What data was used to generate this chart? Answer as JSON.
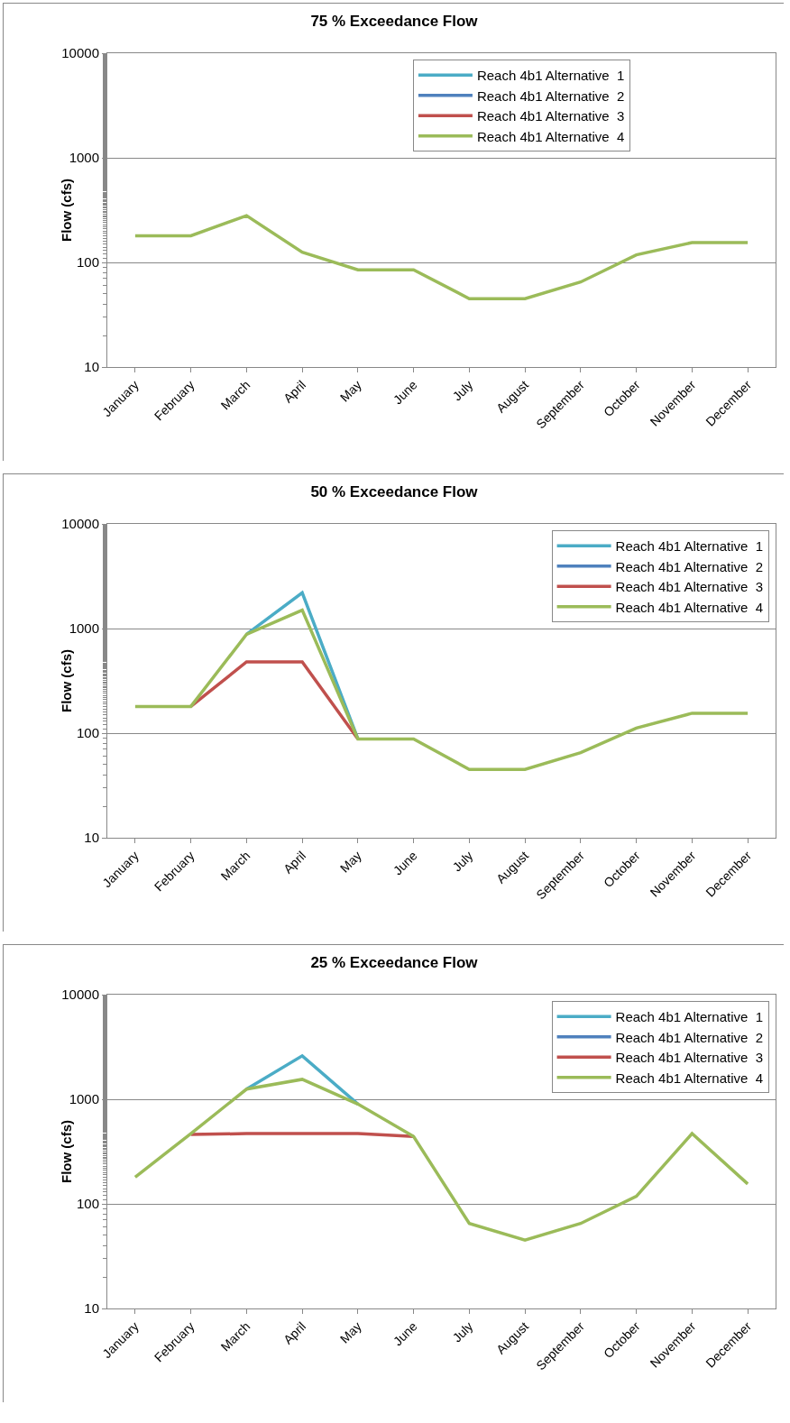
{
  "chart_data": [
    {
      "type": "line",
      "title": "75 % Exceedance Flow",
      "ylabel": "Flow (cfs)",
      "categories": [
        "January",
        "February",
        "March",
        "April",
        "May",
        "June",
        "July",
        "August",
        "September",
        "October",
        "November",
        "December"
      ],
      "log": true,
      "ylim": [
        10,
        10000
      ],
      "yticks": [
        10,
        100,
        1000,
        10000
      ],
      "grid": "y",
      "legend": "top",
      "marker": "none",
      "line_style": "solid",
      "series": [
        {
          "name": "Reach 4b1 Alternative  1",
          "color": "#4bacc6",
          "values": [
            null,
            null,
            null,
            null,
            null,
            null,
            null,
            null,
            null,
            null,
            null,
            null
          ]
        },
        {
          "name": "Reach 4b1 Alternative  2",
          "color": "#4f81bd",
          "values": [
            null,
            null,
            null,
            null,
            null,
            null,
            null,
            null,
            null,
            null,
            null,
            null
          ]
        },
        {
          "name": "Reach 4b1 Alternative  3",
          "color": "#c0504d",
          "values": [
            null,
            null,
            null,
            null,
            null,
            null,
            null,
            null,
            null,
            null,
            null,
            null
          ]
        },
        {
          "name": "Reach 4b1 Alternative  4",
          "color": "#9bbb59",
          "values": [
            180,
            180,
            280,
            125,
            85,
            85,
            45,
            45,
            65,
            118,
            155,
            155
          ]
        }
      ]
    },
    {
      "type": "line",
      "title": "50 % Exceedance Flow",
      "ylabel": "Flow (cfs)",
      "categories": [
        "January",
        "February",
        "March",
        "April",
        "May",
        "June",
        "July",
        "August",
        "September",
        "October",
        "November",
        "December"
      ],
      "log": true,
      "ylim": [
        10,
        10000
      ],
      "yticks": [
        10,
        100,
        1000,
        10000
      ],
      "grid": "y",
      "legend": "top right",
      "marker": "none",
      "line_style": "solid",
      "series": [
        {
          "name": "Reach 4b1 Alternative  1",
          "color": "#4bacc6",
          "values": [
            null,
            null,
            880,
            2200,
            88,
            null,
            null,
            null,
            null,
            null,
            null,
            null
          ]
        },
        {
          "name": "Reach 4b1 Alternative  2",
          "color": "#4f81bd",
          "values": [
            null,
            null,
            null,
            null,
            null,
            null,
            null,
            null,
            null,
            null,
            null,
            null
          ]
        },
        {
          "name": "Reach 4b1 Alternative  3",
          "color": "#c0504d",
          "values": [
            null,
            180,
            480,
            480,
            88,
            null,
            null,
            null,
            null,
            null,
            null,
            null
          ]
        },
        {
          "name": "Reach 4b1 Alternative  4",
          "color": "#9bbb59",
          "values": [
            180,
            180,
            880,
            1500,
            88,
            88,
            45,
            45,
            65,
            112,
            155,
            155
          ]
        }
      ]
    },
    {
      "type": "line",
      "title": "25 % Exceedance Flow",
      "ylabel": "Flow (cfs)",
      "categories": [
        "January",
        "February",
        "March",
        "April",
        "May",
        "June",
        "July",
        "August",
        "September",
        "October",
        "November",
        "December"
      ],
      "log": true,
      "ylim": [
        10,
        10000
      ],
      "yticks": [
        10,
        100,
        1000,
        10000
      ],
      "grid": "y",
      "legend": "top right",
      "marker": "none",
      "line_style": "solid",
      "series": [
        {
          "name": "Reach 4b1 Alternative  1",
          "color": "#4bacc6",
          "values": [
            null,
            null,
            1250,
            2600,
            900,
            null,
            null,
            null,
            null,
            null,
            null,
            null
          ]
        },
        {
          "name": "Reach 4b1 Alternative  2",
          "color": "#4f81bd",
          "values": [
            null,
            null,
            null,
            null,
            null,
            null,
            null,
            null,
            null,
            null,
            null,
            null
          ]
        },
        {
          "name": "Reach 4b1 Alternative  3",
          "color": "#c0504d",
          "values": [
            null,
            460,
            470,
            470,
            470,
            440,
            null,
            null,
            null,
            null,
            null,
            null
          ]
        },
        {
          "name": "Reach 4b1 Alternative  4",
          "color": "#9bbb59",
          "values": [
            180,
            470,
            1250,
            1550,
            900,
            440,
            65,
            45,
            65,
            118,
            470,
            155
          ]
        }
      ]
    }
  ]
}
